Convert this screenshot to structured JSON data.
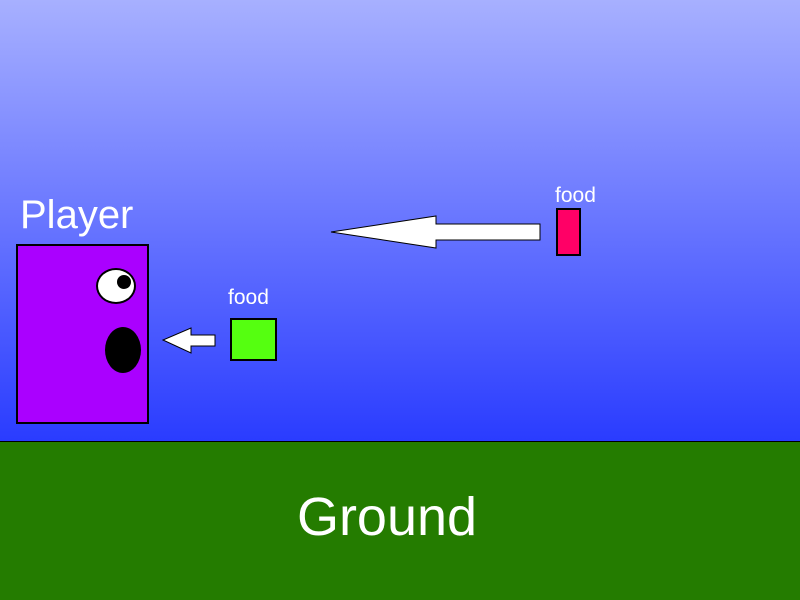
{
  "scene": {
    "sky_colors": [
      "#a7b0ff",
      "#2a3cff"
    ],
    "ground_color": "#247c00",
    "ground_label": "Ground"
  },
  "player": {
    "label": "Player",
    "color": "#aa00ff"
  },
  "foods": [
    {
      "label": "food",
      "color": "#55ff10"
    },
    {
      "label": "food",
      "color": "#ff0066"
    }
  ]
}
